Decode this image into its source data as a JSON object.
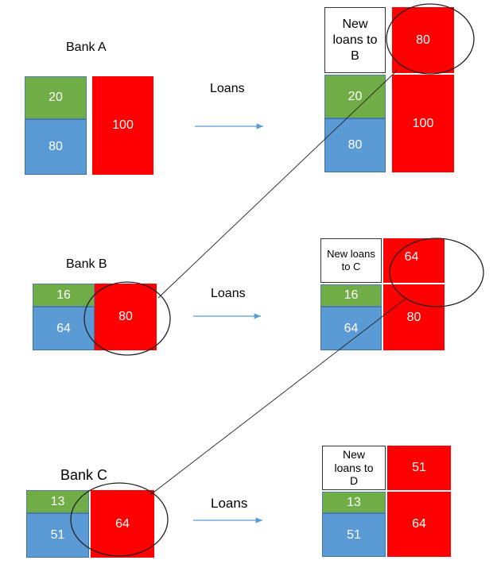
{
  "banks": [
    {
      "name": "Bank A",
      "reserves": "20",
      "deposits_base": "80",
      "liability": "100"
    },
    {
      "name": "Bank B",
      "reserves": "16",
      "deposits_base": "64",
      "liability": "80"
    },
    {
      "name": "Bank C",
      "reserves": "13",
      "deposits_base": "51",
      "liability": "64"
    }
  ],
  "arrow_label": "Loans",
  "results": [
    {
      "new_loans_label": "New loans to B",
      "new_loans_value": "80",
      "reserves": "20",
      "deposits_base": "80",
      "liability": "100"
    },
    {
      "new_loans_label": "New loans to C",
      "new_loans_value": "64",
      "reserves": "16",
      "deposits_base": "64",
      "liability": "80"
    },
    {
      "new_loans_label": "New loans to D",
      "new_loans_value": "51",
      "reserves": "13",
      "deposits_base": "51",
      "liability": "64"
    }
  ],
  "colors": {
    "reserves": "#70ad47",
    "deposits": "#5b9bd5",
    "liability": "#ff0000",
    "arrow": "#5b9bd5"
  }
}
